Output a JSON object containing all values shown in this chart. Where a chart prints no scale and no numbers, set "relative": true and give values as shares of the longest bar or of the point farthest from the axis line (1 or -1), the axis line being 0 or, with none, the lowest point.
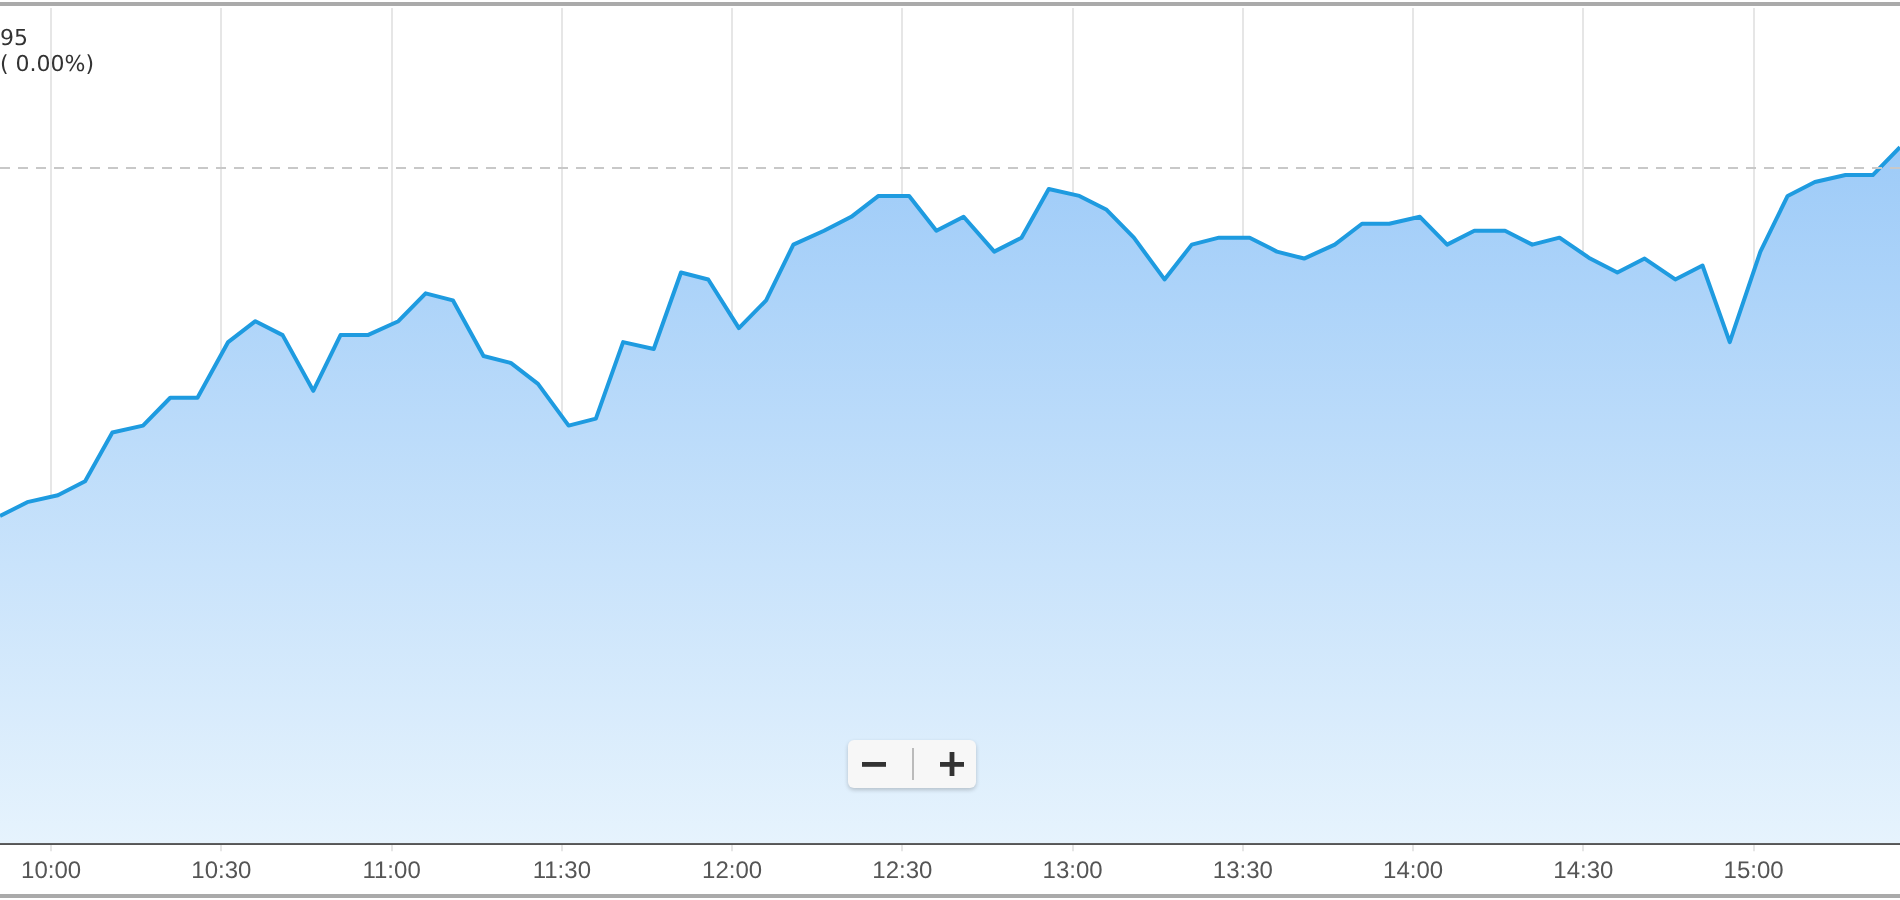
{
  "chart_data": {
    "type": "area",
    "relative": true,
    "x": [
      9.85,
      9.93,
      10.02,
      10.1,
      10.18,
      10.27,
      10.35,
      10.43,
      10.52,
      10.6,
      10.68,
      10.77,
      10.85,
      10.93,
      11.02,
      11.1,
      11.18,
      11.27,
      11.35,
      11.43,
      11.52,
      11.6,
      11.68,
      11.77,
      11.85,
      11.93,
      12.02,
      12.1,
      12.18,
      12.27,
      12.35,
      12.43,
      12.52,
      12.6,
      12.68,
      12.77,
      12.85,
      12.93,
      13.02,
      13.1,
      13.18,
      13.27,
      13.35,
      13.43,
      13.52,
      13.6,
      13.68,
      13.77,
      13.85,
      13.93,
      14.02,
      14.1,
      14.18,
      14.27,
      14.35,
      14.43,
      14.52,
      14.6,
      14.68,
      14.77,
      14.85,
      14.93,
      15.02,
      15.1,
      15.18,
      15.27,
      15.35,
      15.43
    ],
    "series": [
      {
        "color": "#1e9be0",
        "values": [
          0.47,
          0.49,
          0.5,
          0.52,
          0.59,
          0.6,
          0.64,
          0.64,
          0.72,
          0.75,
          0.73,
          0.65,
          0.73,
          0.73,
          0.75,
          0.79,
          0.78,
          0.7,
          0.69,
          0.66,
          0.6,
          0.61,
          0.72,
          0.71,
          0.82,
          0.81,
          0.74,
          0.78,
          0.86,
          0.88,
          0.9,
          0.93,
          0.93,
          0.88,
          0.9,
          0.85,
          0.87,
          0.94,
          0.93,
          0.91,
          0.87,
          0.81,
          0.86,
          0.87,
          0.87,
          0.85,
          0.84,
          0.86,
          0.89,
          0.89,
          0.9,
          0.86,
          0.88,
          0.88,
          0.86,
          0.87,
          0.84,
          0.82,
          0.84,
          0.81,
          0.83,
          0.72,
          0.85,
          0.93,
          0.95,
          0.96,
          0.96,
          1
        ]
      }
    ],
    "xlim": [
      9.85,
      15.43
    ],
    "xticks": [
      {
        "value": 10,
        "label": "10:00"
      },
      {
        "value": 10.5,
        "label": "10:30"
      },
      {
        "value": 11,
        "label": "11:00"
      },
      {
        "value": 11.5,
        "label": "11:30"
      },
      {
        "value": 12,
        "label": "12:00"
      },
      {
        "value": 12.5,
        "label": "12:30"
      },
      {
        "value": 13,
        "label": "13:00"
      },
      {
        "value": 13.5,
        "label": "13:30"
      },
      {
        "value": 14,
        "label": "14:00"
      },
      {
        "value": 14.5,
        "label": "14:30"
      },
      {
        "value": 15,
        "label": "15:00"
      }
    ],
    "ref_lines": [
      {
        "axis": "y",
        "value": 0.97,
        "color": "#c8c8c8",
        "line_style": "dashed"
      }
    ],
    "annotations": [
      "95",
      "( 0.00%)"
    ],
    "grid": "x",
    "legend": false,
    "marker": "none",
    "line_style": "solid"
  }
}
